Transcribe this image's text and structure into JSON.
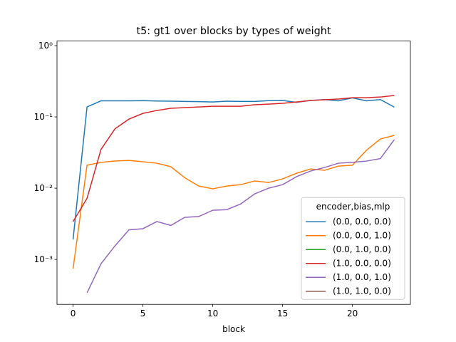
{
  "chart_data": {
    "type": "line",
    "title": "t5: gt1 over blocks by types of weight",
    "xlabel": "block",
    "log_y": true,
    "x": [
      0,
      1,
      2,
      3,
      4,
      5,
      6,
      7,
      8,
      9,
      10,
      11,
      12,
      13,
      14,
      15,
      16,
      17,
      18,
      19,
      20,
      21,
      22,
      23
    ],
    "xlim": [
      -1.15,
      24.15
    ],
    "xticks": [
      0,
      5,
      10,
      15,
      20
    ],
    "ylim": [
      0.000234,
      1.16
    ],
    "yticks": [
      {
        "value": 1,
        "label": "10⁰"
      },
      {
        "value": 0.1,
        "label": "10⁻¹"
      },
      {
        "value": 0.01,
        "label": "10⁻²"
      },
      {
        "value": 0.001,
        "label": "10⁻³"
      }
    ],
    "legend_title": "encoder,bias,mlp",
    "legend_position": "lower right",
    "series": [
      {
        "name": "(0.0, 0.0, 0.0)",
        "color": "#1f77b4",
        "values": [
          0.0019,
          0.138,
          0.168,
          0.168,
          0.168,
          0.169,
          0.167,
          0.166,
          0.165,
          0.164,
          0.162,
          0.166,
          0.165,
          0.165,
          0.169,
          0.17,
          0.16,
          0.17,
          0.175,
          0.168,
          0.185,
          0.168,
          0.175,
          0.137
        ]
      },
      {
        "name": "(0.0, 0.0, 1.0)",
        "color": "#ff7f0e",
        "values": [
          0.00074,
          0.021,
          0.023,
          0.024,
          0.0245,
          0.0235,
          0.0224,
          0.02,
          0.014,
          0.0107,
          0.0098,
          0.0107,
          0.0112,
          0.0126,
          0.012,
          0.0135,
          0.0162,
          0.0186,
          0.0178,
          0.0204,
          0.021,
          0.034,
          0.049,
          0.055
        ]
      },
      {
        "name": "(0.0, 1.0, 0.0)",
        "color": "#2ca02c",
        "values": [
          null,
          null,
          null,
          null,
          null,
          null,
          null,
          null,
          null,
          null,
          null,
          null,
          null,
          null,
          null,
          null,
          null,
          null,
          null,
          null,
          null,
          null,
          null,
          null
        ]
      },
      {
        "name": "(1.0, 0.0, 0.0)",
        "color": "#d62728",
        "values": [
          0.0034,
          0.0072,
          0.035,
          0.068,
          0.093,
          0.112,
          0.123,
          0.132,
          0.135,
          0.138,
          0.141,
          0.141,
          0.141,
          0.148,
          0.151,
          0.155,
          0.162,
          0.17,
          0.174,
          0.178,
          0.186,
          0.186,
          0.19,
          0.2
        ]
      },
      {
        "name": "(1.0, 0.0, 1.0)",
        "color": "#9467bd",
        "values": [
          null,
          0.00034,
          0.00087,
          0.00155,
          0.0026,
          0.0027,
          0.0034,
          0.003,
          0.0039,
          0.004,
          0.0049,
          0.005,
          0.006,
          0.0083,
          0.01,
          0.0112,
          0.0145,
          0.0174,
          0.0195,
          0.0224,
          0.023,
          0.024,
          0.026,
          0.048
        ]
      },
      {
        "name": "(1.0, 1.0, 0.0)",
        "color": "#8c564b",
        "values": [
          null,
          null,
          null,
          null,
          null,
          null,
          null,
          null,
          null,
          null,
          null,
          null,
          null,
          null,
          null,
          null,
          null,
          null,
          null,
          null,
          null,
          null,
          null,
          null
        ]
      }
    ]
  }
}
